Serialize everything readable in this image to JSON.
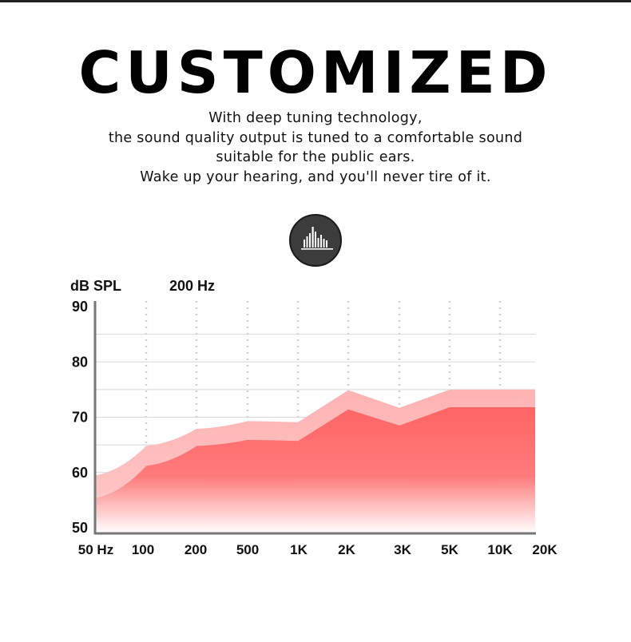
{
  "header": {
    "title": "CUSTOMIZED",
    "description": [
      "With deep tuning technology,",
      "the sound quality output is tuned to a comfortable sound",
      "suitable for the public ears.",
      "Wake up your hearing, and you'll never tire of it."
    ],
    "badge_icon": "equalizer-icon"
  },
  "chart_data": {
    "type": "area",
    "ylabel": "dB SPL",
    "annotation": "200 Hz",
    "x_tick_labels": [
      "50 Hz",
      "100",
      "200",
      "500",
      "1K",
      "2K",
      "3K",
      "5K",
      "10K",
      "20K"
    ],
    "y_tick_labels": [
      "90",
      "80",
      "70",
      "60",
      "50"
    ],
    "ylim": [
      50,
      90
    ],
    "grid": true,
    "series": [
      {
        "color": "#ffb3b3",
        "x": [
          "50 Hz",
          "100",
          "200",
          "500",
          "1K",
          "2K",
          "3K",
          "5K",
          "10K",
          "20K"
        ],
        "values": [
          59.5,
          64.8,
          67.9,
          69.3,
          69.1,
          74.9,
          71.7,
          75.0,
          75.0,
          75.0
        ]
      },
      {
        "color": "#ff6b6b",
        "x": [
          "50 Hz",
          "100",
          "200",
          "500",
          "1K",
          "2K",
          "3K",
          "5K",
          "10K",
          "20K"
        ],
        "values": [
          55.4,
          61.2,
          64.8,
          65.9,
          65.7,
          71.4,
          68.5,
          71.8,
          71.8,
          71.8
        ]
      }
    ]
  }
}
